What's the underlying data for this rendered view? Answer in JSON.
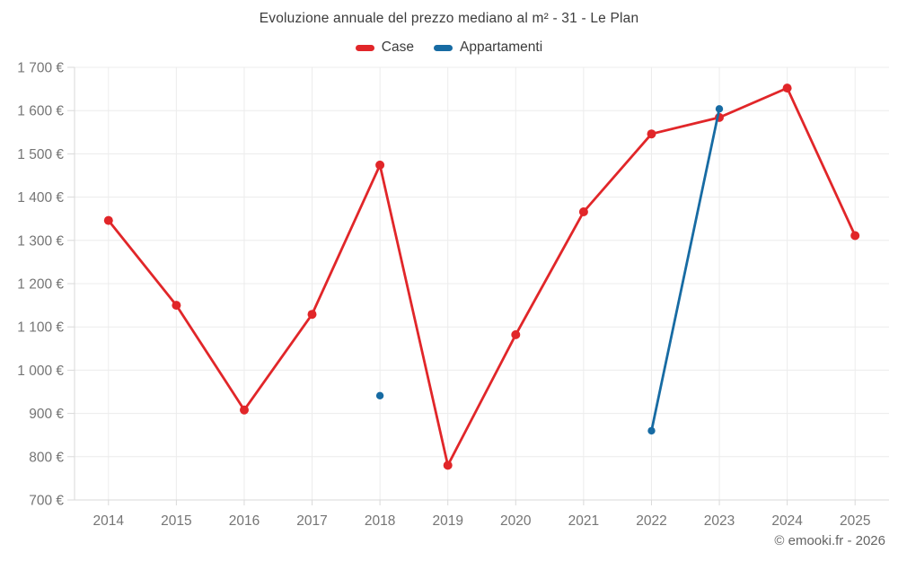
{
  "chart_data": {
    "type": "line",
    "title": "Evoluzione annuale del prezzo mediano al m² - 31 - Le Plan",
    "xlabel": "",
    "ylabel": "",
    "grid": true,
    "legend_position": "top",
    "ylim": [
      700,
      1700
    ],
    "y_ticks": [
      700,
      800,
      900,
      1000,
      1100,
      1200,
      1300,
      1400,
      1500,
      1600,
      1700
    ],
    "y_tick_labels": [
      "700 €",
      "800 €",
      "900 €",
      "1 000 €",
      "1 100 €",
      "1 200 €",
      "1 300 €",
      "1 400 €",
      "1 500 €",
      "1 600 €",
      "1 700 €"
    ],
    "categories": [
      "2014",
      "2015",
      "2016",
      "2017",
      "2018",
      "2019",
      "2020",
      "2021",
      "2022",
      "2023",
      "2024",
      "2025"
    ],
    "series": [
      {
        "name": "Case",
        "color": "#e12629",
        "marker_radius": 5,
        "values": [
          1346,
          1150,
          908,
          1129,
          1474,
          780,
          1082,
          1366,
          1546,
          1584,
          1652,
          1311
        ]
      },
      {
        "name": "Appartamenti",
        "color": "#176ba3",
        "marker_radius": 4.2,
        "values": [
          null,
          null,
          null,
          null,
          941,
          null,
          null,
          null,
          860,
          1604,
          null,
          null
        ]
      }
    ]
  },
  "footer": {
    "copyright": "© emooki.fr - 2026"
  }
}
